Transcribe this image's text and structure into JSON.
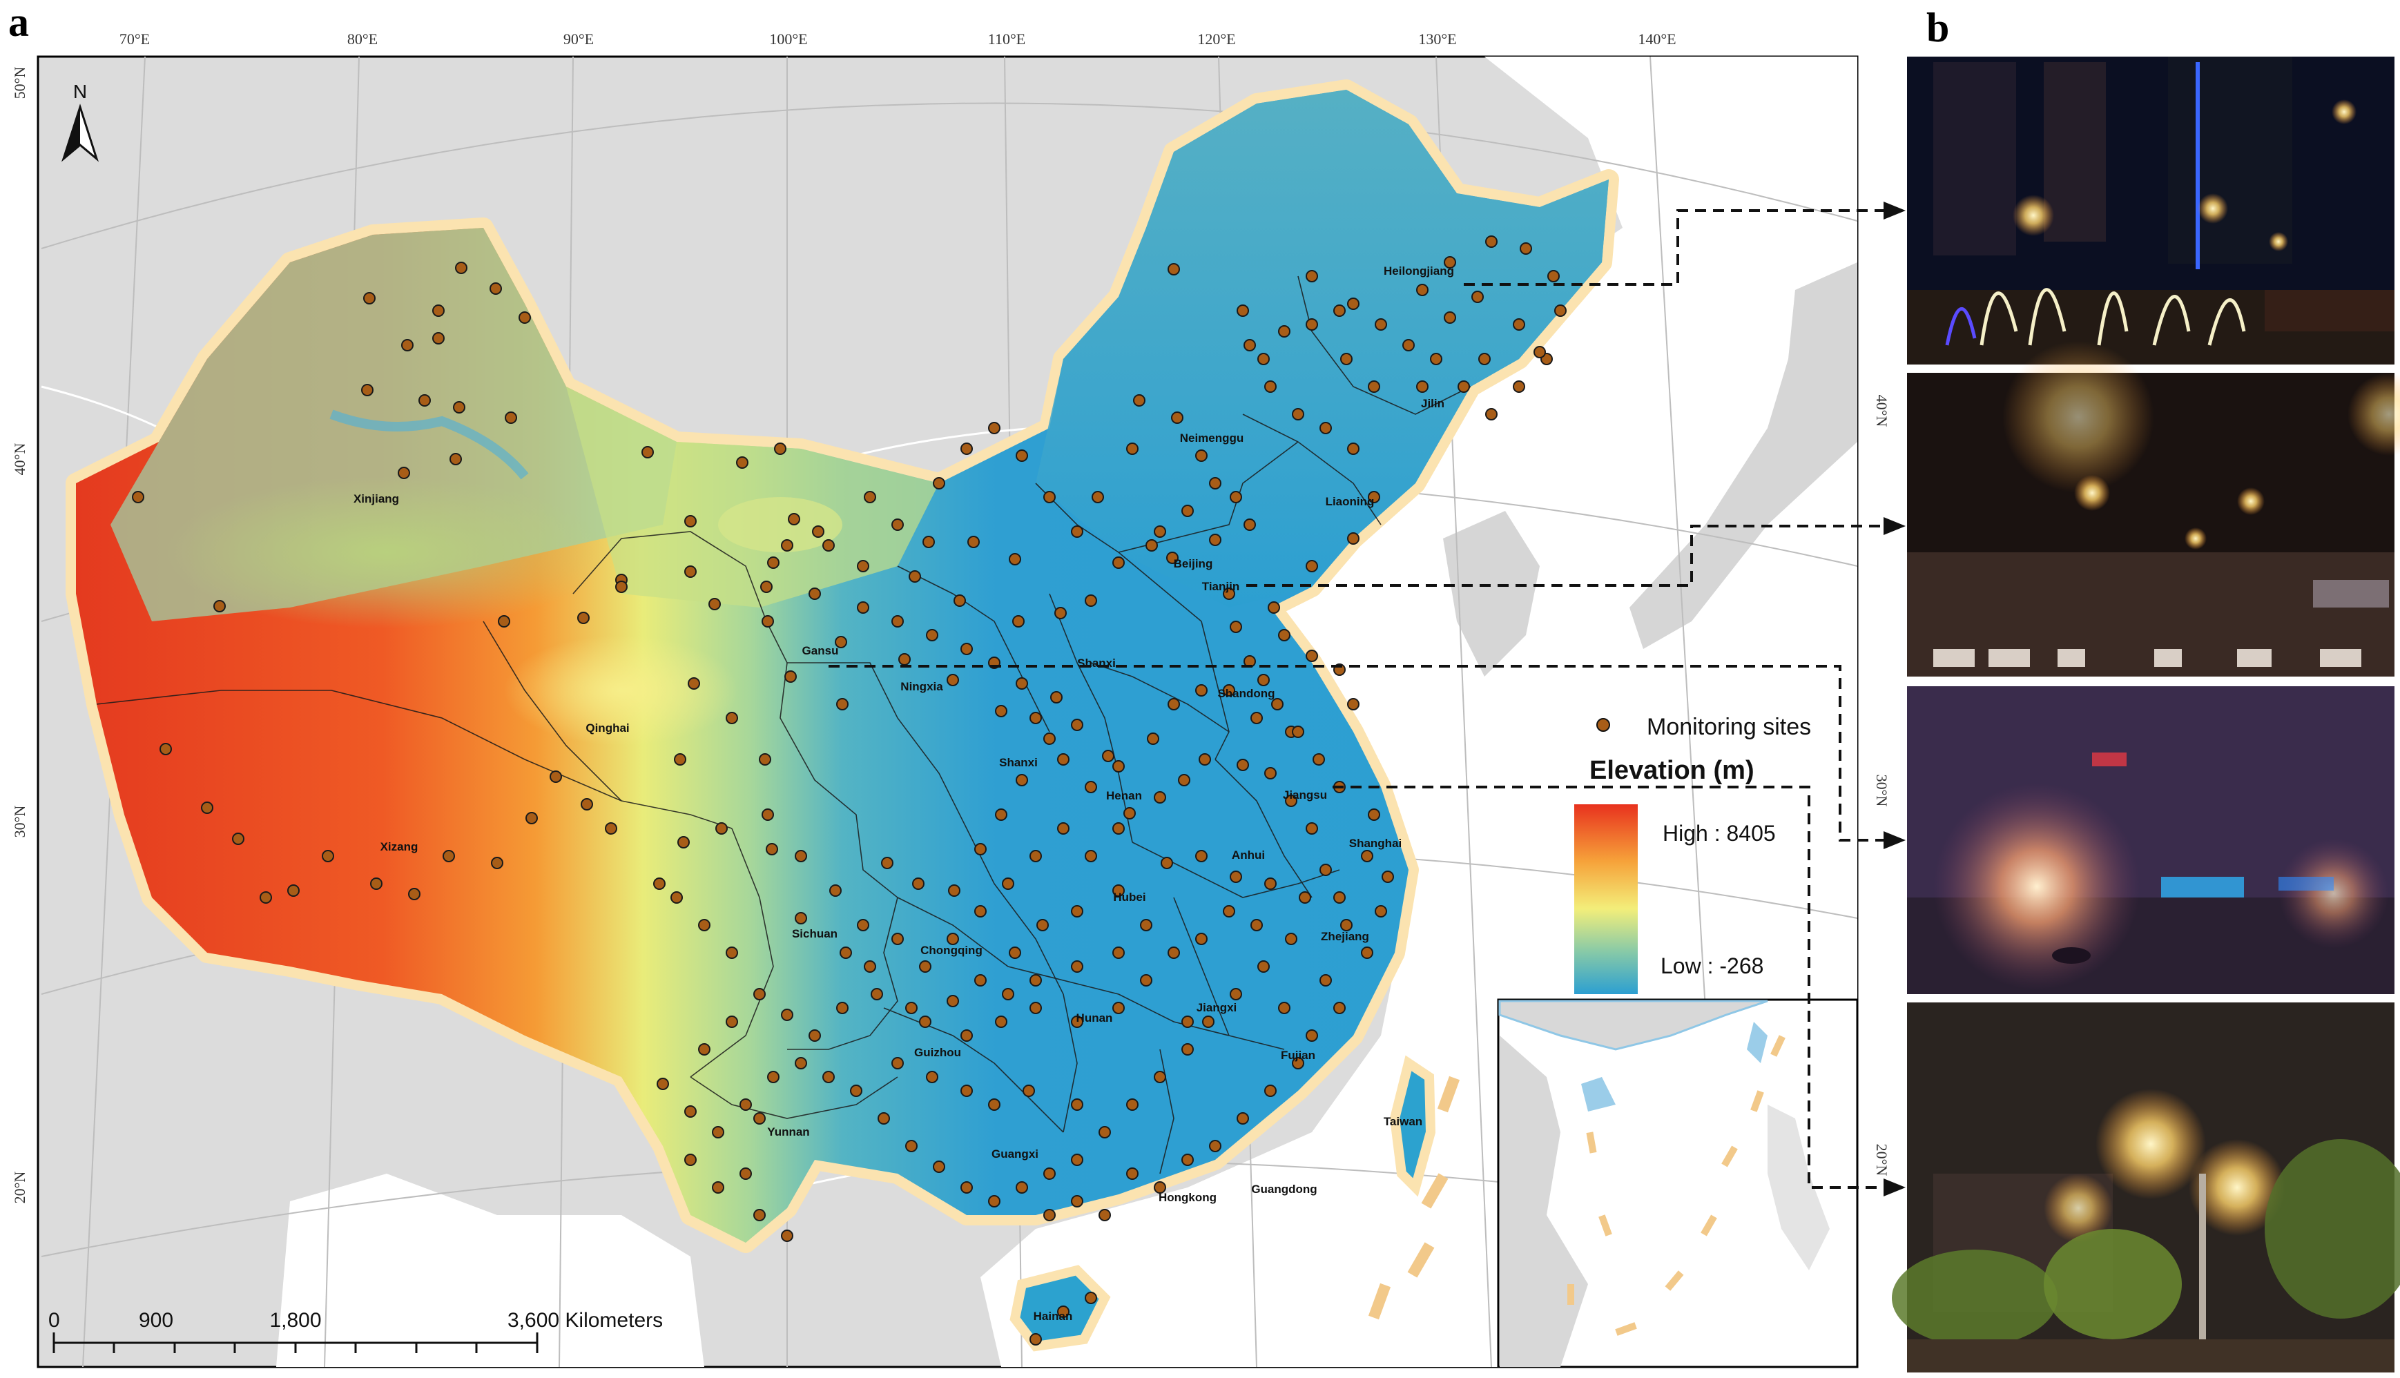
{
  "panels": {
    "a": "a",
    "b": "b"
  },
  "graticule": {
    "lon": [
      "70°E",
      "80°E",
      "90°E",
      "100°E",
      "110°E",
      "120°E",
      "130°E",
      "140°E"
    ],
    "lat_left": [
      "50°N",
      "40°N",
      "30°N",
      "20°N"
    ],
    "lat_right": [
      "40°N",
      "30°N",
      "20°N"
    ]
  },
  "north_arrow": "N",
  "legend": {
    "sites_label": "Monitoring sites",
    "elevation_title": "Elevation (m)",
    "high": "High : 8405",
    "low": "Low : -268",
    "colors": {
      "high": "#e8321e",
      "mid": "#f3ee7a",
      "low": "#2c9fd1",
      "site": "#a85d17"
    }
  },
  "scale_bar": {
    "labels": [
      "0",
      "900",
      "1,800",
      "3,600 Kilometers"
    ]
  },
  "provinces": [
    "Xinjiang",
    "Xizang",
    "Qinghai",
    "Gansu",
    "Ningxia",
    "Neimenggu",
    "Heilongjiang",
    "Jilin",
    "Liaoning",
    "Beijing",
    "Tianjin",
    "Shandong",
    "Shanxi",
    "Shanxi",
    "Henan",
    "Jiangsu",
    "Shanghai",
    "Anhui",
    "Hubei",
    "Zhejiang",
    "Sichuan",
    "Chongqing",
    "Guizhou",
    "Hunan",
    "Jiangxi",
    "Fujian",
    "Yunnan",
    "Guangxi",
    "Guangdong",
    "Hongkong",
    "Taiwan",
    "Hainan"
  ],
  "photos": [
    {
      "scene": "clear night street with illuminated trees"
    },
    {
      "scene": "light haze night road with street lamps"
    },
    {
      "scene": "heavy fog night city lights"
    },
    {
      "scene": "bright street lamps among trees"
    }
  ]
}
